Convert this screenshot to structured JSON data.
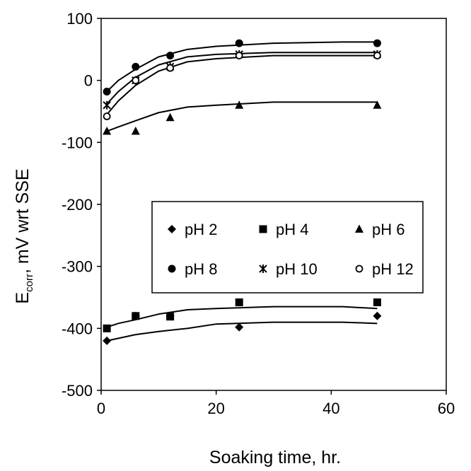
{
  "chart_data": {
    "type": "scatter",
    "title": "",
    "xlabel": "Soaking time, hr.",
    "ylabel": {
      "main": "E",
      "sub": "corr",
      "rest": ", mV wrt SSE"
    },
    "xlim": [
      0,
      60
    ],
    "ylim": [
      -500,
      100
    ],
    "xticks": [
      0,
      20,
      40,
      60
    ],
    "yticks": [
      -500,
      -400,
      -300,
      -200,
      -100,
      0,
      100
    ],
    "xtick_labels": [
      "0",
      "20",
      "40",
      "60"
    ],
    "ytick_labels": [
      "-500",
      "-400",
      "-300",
      "-200",
      "-100",
      "0",
      "100"
    ],
    "grid": false,
    "legend_position": "center",
    "x": [
      1,
      6,
      12,
      24,
      48
    ],
    "series": [
      {
        "name": "pH 2",
        "marker": "diamond",
        "values": [
          -420,
          -380,
          -380,
          -398,
          -380
        ]
      },
      {
        "name": "pH 4",
        "marker": "square",
        "values": [
          -400,
          -380,
          -381,
          -358,
          -358
        ]
      },
      {
        "name": "pH 6",
        "marker": "triangle",
        "values": [
          -82,
          -82,
          -60,
          -40,
          -40
        ]
      },
      {
        "name": "pH 8",
        "marker": "circle",
        "values": [
          -18,
          22,
          40,
          60,
          60
        ]
      },
      {
        "name": "pH 10",
        "marker": "asterisk",
        "values": [
          -40,
          0,
          22,
          42,
          42
        ]
      },
      {
        "name": "pH 12",
        "marker": "open-circle",
        "values": [
          -58,
          0,
          20,
          40,
          40
        ]
      }
    ],
    "trend_lines": [
      {
        "series": "pH 2",
        "x": [
          1,
          3,
          6,
          10,
          15,
          20,
          30,
          42,
          48
        ],
        "y": [
          -420,
          -416,
          -410,
          -405,
          -400,
          -393,
          -390,
          -390,
          -392
        ]
      },
      {
        "series": "pH 4",
        "x": [
          1,
          3,
          6,
          10,
          15,
          20,
          30,
          42,
          48
        ],
        "y": [
          -398,
          -392,
          -386,
          -377,
          -370,
          -368,
          -365,
          -365,
          -368
        ]
      },
      {
        "series": "pH 6",
        "x": [
          1,
          3,
          6,
          10,
          15,
          20,
          30,
          42,
          48
        ],
        "y": [
          -82,
          -75,
          -65,
          -52,
          -43,
          -40,
          -35,
          -35,
          -35
        ]
      },
      {
        "series": "pH 8",
        "x": [
          1,
          3,
          6,
          10,
          15,
          20,
          30,
          42,
          48
        ],
        "y": [
          -18,
          0,
          18,
          38,
          50,
          55,
          60,
          62,
          62
        ]
      },
      {
        "series": "pH 10",
        "x": [
          1,
          3,
          6,
          10,
          15,
          20,
          30,
          42,
          48
        ],
        "y": [
          -38,
          -18,
          5,
          25,
          38,
          42,
          45,
          45,
          45
        ]
      },
      {
        "series": "pH 12",
        "x": [
          1,
          3,
          6,
          10,
          15,
          20,
          30,
          42,
          48
        ],
        "y": [
          -55,
          -33,
          -8,
          15,
          30,
          35,
          40,
          40,
          40
        ]
      }
    ]
  }
}
